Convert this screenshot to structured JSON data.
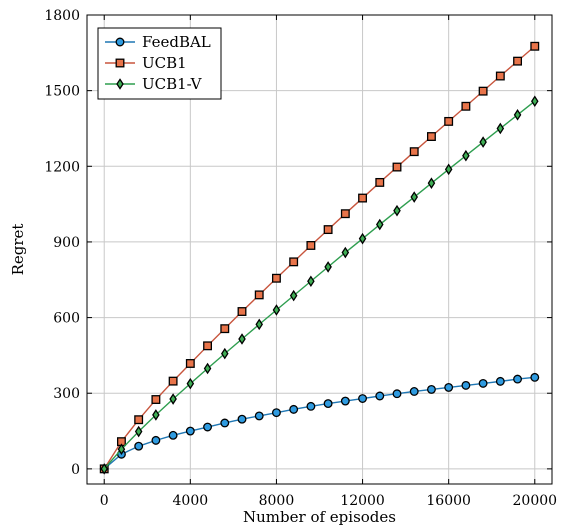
{
  "chart_data": {
    "type": "line",
    "title": "",
    "xlabel": "Number of episodes",
    "ylabel": "Regret",
    "xlim": [
      -800,
      20800
    ],
    "ylim": [
      -60,
      1800
    ],
    "xticks": [
      0,
      4000,
      8000,
      12000,
      16000,
      20000
    ],
    "yticks": [
      0,
      300,
      600,
      900,
      1200,
      1500,
      1800
    ],
    "grid": true,
    "legend_position": "top-left",
    "x": [
      0,
      800,
      1600,
      2400,
      3200,
      4000,
      4800,
      5600,
      6400,
      7200,
      8000,
      8800,
      9600,
      10400,
      11200,
      12000,
      12800,
      13600,
      14400,
      15200,
      16000,
      16800,
      17600,
      18400,
      19200,
      20000
    ],
    "series": [
      {
        "name": "FeedBAL",
        "color": "#1f77b4",
        "fill": "#2f9be0",
        "marker": "circle",
        "values": [
          0,
          58,
          90,
          113,
          133,
          150,
          166,
          182,
          197,
          210,
          223,
          236,
          248,
          259,
          269,
          279,
          289,
          298,
          307,
          315,
          323,
          331,
          339,
          347,
          356,
          363
        ]
      },
      {
        "name": "UCB1",
        "color": "#c8553d",
        "fill": "#e8744a",
        "marker": "square",
        "values": [
          0,
          108,
          195,
          275,
          348,
          418,
          488,
          556,
          624,
          690,
          756,
          821,
          886,
          949,
          1012,
          1074,
          1136,
          1197,
          1258,
          1318,
          1378,
          1438,
          1498,
          1558,
          1617,
          1676
        ]
      },
      {
        "name": "UCB1-V",
        "color": "#2e9e4f",
        "fill": "#3fae55",
        "marker": "diamond",
        "values": [
          0,
          78,
          148,
          214,
          277,
          338,
          398,
          457,
          515,
          573,
          630,
          687,
          744,
          801,
          858,
          913,
          969,
          1024,
          1078,
          1133,
          1188,
          1242,
          1296,
          1350,
          1404,
          1458
        ]
      }
    ]
  }
}
